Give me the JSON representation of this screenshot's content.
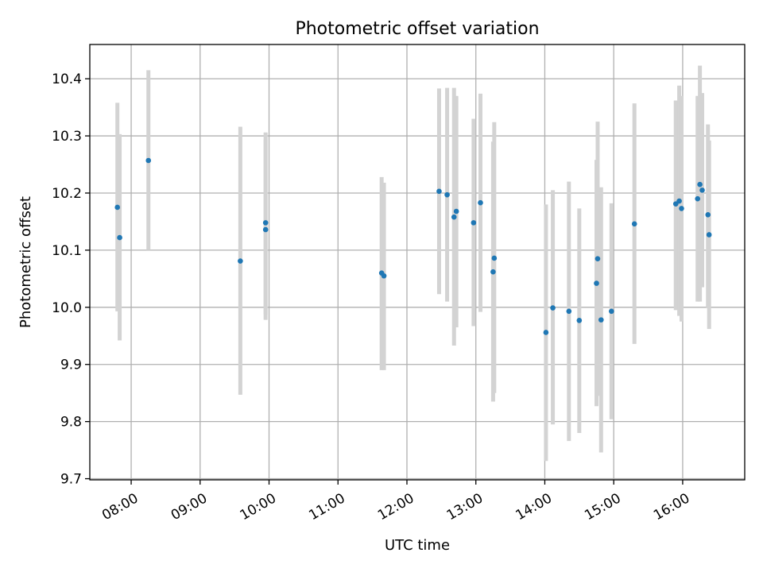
{
  "chart_data": {
    "type": "scatter",
    "title": "Photometric offset variation",
    "xlabel": "UTC time",
    "ylabel": "Photometric offset",
    "x_axis": "time",
    "xlim": [
      "07:24",
      "16:54"
    ],
    "ylim": [
      9.698,
      10.46
    ],
    "x_ticks": [
      "08:00",
      "09:00",
      "10:00",
      "11:00",
      "12:00",
      "13:00",
      "14:00",
      "15:00",
      "16:00"
    ],
    "y_ticks": [
      9.7,
      9.8,
      9.9,
      10.0,
      10.1,
      10.2,
      10.3,
      10.4
    ],
    "y_tick_labels": [
      "9.7",
      "9.8",
      "9.9",
      "10.0",
      "10.1",
      "10.2",
      "10.3",
      "10.4"
    ],
    "grid": true,
    "point_color": "#1f77b4",
    "errorbar_color": "#d3d3d3",
    "points": [
      {
        "x": "07:48",
        "y": 10.175,
        "ylo": 9.993,
        "yhi": 10.358
      },
      {
        "x": "07:50",
        "y": 10.122,
        "ylo": 9.942,
        "yhi": 10.303
      },
      {
        "x": "08:15",
        "y": 10.257,
        "ylo": 10.1,
        "yhi": 10.415
      },
      {
        "x": "09:35",
        "y": 10.081,
        "ylo": 9.847,
        "yhi": 10.316
      },
      {
        "x": "09:57",
        "y": 10.148,
        "ylo": 9.987,
        "yhi": 10.306
      },
      {
        "x": "09:57",
        "y": 10.136,
        "ylo": 9.978,
        "yhi": 10.293
      },
      {
        "x": "11:38",
        "y": 10.06,
        "ylo": 9.89,
        "yhi": 10.228
      },
      {
        "x": "11:40",
        "y": 10.055,
        "ylo": 9.89,
        "yhi": 10.218
      },
      {
        "x": "12:28",
        "y": 10.203,
        "ylo": 10.023,
        "yhi": 10.383
      },
      {
        "x": "12:35",
        "y": 10.197,
        "ylo": 10.01,
        "yhi": 10.384
      },
      {
        "x": "12:41",
        "y": 10.158,
        "ylo": 9.933,
        "yhi": 10.384
      },
      {
        "x": "12:43",
        "y": 10.168,
        "ylo": 9.965,
        "yhi": 10.37
      },
      {
        "x": "12:58",
        "y": 10.148,
        "ylo": 9.967,
        "yhi": 10.33
      },
      {
        "x": "13:04",
        "y": 10.183,
        "ylo": 9.992,
        "yhi": 10.374
      },
      {
        "x": "13:15",
        "y": 10.062,
        "ylo": 9.835,
        "yhi": 10.29
      },
      {
        "x": "13:16",
        "y": 10.086,
        "ylo": 9.85,
        "yhi": 10.324
      },
      {
        "x": "14:01",
        "y": 9.956,
        "ylo": 9.731,
        "yhi": 10.18
      },
      {
        "x": "14:07",
        "y": 9.999,
        "ylo": 9.795,
        "yhi": 10.205
      },
      {
        "x": "14:21",
        "y": 9.993,
        "ylo": 9.766,
        "yhi": 10.22
      },
      {
        "x": "14:30",
        "y": 9.977,
        "ylo": 9.78,
        "yhi": 10.173
      },
      {
        "x": "14:45",
        "y": 10.042,
        "ylo": 9.827,
        "yhi": 10.258
      },
      {
        "x": "14:46",
        "y": 10.085,
        "ylo": 9.845,
        "yhi": 10.325
      },
      {
        "x": "14:49",
        "y": 9.978,
        "ylo": 9.746,
        "yhi": 10.21
      },
      {
        "x": "14:58",
        "y": 9.993,
        "ylo": 9.804,
        "yhi": 10.182
      },
      {
        "x": "15:18",
        "y": 10.146,
        "ylo": 9.936,
        "yhi": 10.357
      },
      {
        "x": "15:54",
        "y": 10.181,
        "ylo": 9.995,
        "yhi": 10.362
      },
      {
        "x": "15:57",
        "y": 10.186,
        "ylo": 9.985,
        "yhi": 10.388
      },
      {
        "x": "15:59",
        "y": 10.173,
        "ylo": 9.975,
        "yhi": 10.37
      },
      {
        "x": "16:13",
        "y": 10.19,
        "ylo": 10.01,
        "yhi": 10.37
      },
      {
        "x": "16:15",
        "y": 10.215,
        "ylo": 10.01,
        "yhi": 10.423
      },
      {
        "x": "16:17",
        "y": 10.205,
        "ylo": 10.035,
        "yhi": 10.375
      },
      {
        "x": "16:22",
        "y": 10.162,
        "ylo": 10.0,
        "yhi": 10.32
      },
      {
        "x": "16:23",
        "y": 10.127,
        "ylo": 9.962,
        "yhi": 10.292
      }
    ]
  }
}
